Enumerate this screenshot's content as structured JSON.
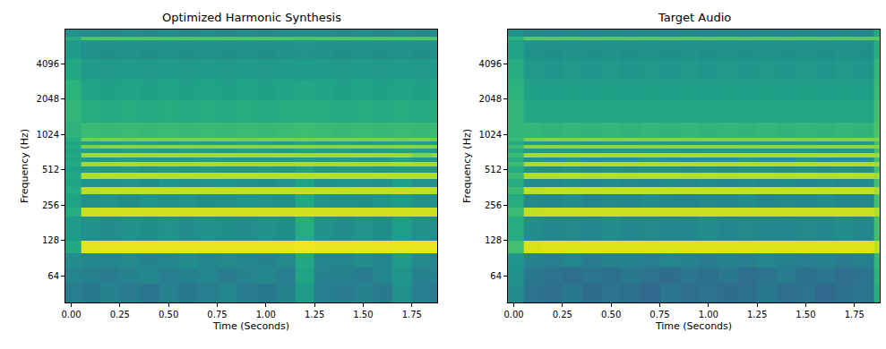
{
  "chart_data": [
    {
      "type": "heatmap",
      "title": "Optimized Harmonic Synthesis",
      "x_label": "Time (Seconds)",
      "y_label": "Frequency (Hz)",
      "color": "Viridis",
      "log": "y",
      "grid": false,
      "xlim": [
        -0.03,
        1.88
      ],
      "ylim": [
        38,
        8000
      ],
      "xticks": [
        {
          "value": 0,
          "label": "0.00"
        },
        {
          "value": 0.25,
          "label": "0.25"
        },
        {
          "value": 0.5,
          "label": "0.50"
        },
        {
          "value": 0.75,
          "label": "0.75"
        },
        {
          "value": 1,
          "label": "1.00"
        },
        {
          "value": 1.25,
          "label": "1.25"
        },
        {
          "value": 1.5,
          "label": "1.50"
        },
        {
          "value": 1.75,
          "label": "1.75"
        }
      ],
      "yticks": [
        64,
        128,
        256,
        512,
        1024,
        2048,
        4096
      ],
      "zlim": [
        0,
        100
      ],
      "x": [
        -0.05,
        0.05,
        0.15,
        0.25,
        0.35,
        0.45,
        0.55,
        0.65,
        0.75,
        0.85,
        0.95,
        1.05,
        1.15,
        1.25,
        1.35,
        1.45,
        1.55,
        1.65,
        1.75,
        1.85,
        1.95
      ],
      "y": [
        38,
        55,
        75,
        100,
        128,
        205,
        245,
        320,
        365,
        430,
        485,
        545,
        600,
        650,
        710,
        780,
        830,
        900,
        950,
        1300,
        2000,
        3000,
        4500,
        6000,
        6500,
        6900,
        8000
      ],
      "z": [
        [
          42,
          40,
          44,
          41,
          39,
          43,
          40,
          42,
          45,
          41,
          40,
          43,
          55,
          42,
          41,
          44,
          40,
          50,
          42,
          41
        ],
        [
          45,
          43,
          41,
          44,
          46,
          42,
          43,
          45,
          41,
          44,
          46,
          42,
          58,
          44,
          43,
          41,
          45,
          52,
          43,
          44
        ],
        [
          48,
          46,
          45,
          47,
          44,
          46,
          48,
          45,
          47,
          46,
          44,
          47,
          60,
          46,
          45,
          48,
          46,
          54,
          47,
          45
        ],
        [
          60,
          96,
          97,
          97,
          97,
          97,
          97,
          97,
          97,
          97,
          97,
          97,
          98,
          97,
          97,
          97,
          97,
          97,
          97,
          97
        ],
        [
          55,
          50,
          48,
          50,
          49,
          51,
          48,
          50,
          49,
          48,
          50,
          49,
          62,
          50,
          48,
          51,
          49,
          56,
          50,
          49
        ],
        [
          62,
          92,
          93,
          93,
          93,
          93,
          93,
          93,
          93,
          93,
          93,
          93,
          93,
          93,
          93,
          93,
          93,
          93,
          93,
          92
        ],
        [
          58,
          50,
          51,
          49,
          52,
          50,
          51,
          49,
          50,
          52,
          51,
          50,
          60,
          51,
          50,
          49,
          52,
          55,
          50,
          51
        ],
        [
          62,
          90,
          91,
          91,
          91,
          91,
          91,
          91,
          91,
          91,
          91,
          91,
          91,
          91,
          91,
          91,
          91,
          91,
          91,
          90
        ],
        [
          58,
          52,
          50,
          51,
          49,
          52,
          50,
          51,
          52,
          50,
          49,
          51,
          58,
          50,
          52,
          51,
          50,
          56,
          51,
          50
        ],
        [
          60,
          88,
          89,
          89,
          89,
          89,
          89,
          89,
          89,
          89,
          89,
          89,
          89,
          89,
          89,
          89,
          89,
          89,
          89,
          88
        ],
        [
          57,
          54,
          52,
          53,
          51,
          54,
          52,
          53,
          52,
          51,
          53,
          52,
          57,
          52,
          53,
          54,
          52,
          55,
          53,
          52
        ],
        [
          60,
          86,
          87,
          87,
          87,
          87,
          87,
          87,
          87,
          87,
          87,
          87,
          87,
          87,
          87,
          87,
          87,
          87,
          87,
          86
        ],
        [
          58,
          55,
          54,
          56,
          53,
          55,
          54,
          56,
          55,
          54,
          53,
          55,
          57,
          54,
          56,
          55,
          54,
          58,
          55,
          54
        ],
        [
          60,
          85,
          86,
          86,
          86,
          86,
          86,
          86,
          86,
          86,
          86,
          86,
          86,
          86,
          86,
          86,
          86,
          86,
          80,
          84
        ],
        [
          58,
          56,
          55,
          57,
          56,
          55,
          57,
          56,
          55,
          57,
          56,
          55,
          58,
          56,
          57,
          55,
          56,
          58,
          56,
          55
        ],
        [
          62,
          80,
          82,
          82,
          82,
          82,
          82,
          82,
          82,
          82,
          82,
          82,
          82,
          82,
          82,
          82,
          82,
          82,
          82,
          80
        ],
        [
          58,
          57,
          56,
          58,
          57,
          56,
          58,
          57,
          56,
          58,
          57,
          56,
          59,
          57,
          58,
          56,
          57,
          58,
          57,
          56
        ],
        [
          62,
          78,
          79,
          79,
          79,
          79,
          79,
          79,
          79,
          79,
          79,
          79,
          79,
          79,
          79,
          79,
          79,
          79,
          79,
          78
        ],
        [
          65,
          68,
          67,
          68,
          67,
          68,
          67,
          68,
          67,
          68,
          67,
          68,
          69,
          68,
          67,
          68,
          67,
          68,
          67,
          68
        ],
        [
          66,
          62,
          61,
          62,
          61,
          62,
          61,
          62,
          61,
          62,
          61,
          62,
          63,
          62,
          61,
          62,
          61,
          62,
          61,
          62
        ],
        [
          64,
          58,
          57,
          58,
          57,
          58,
          57,
          58,
          57,
          58,
          57,
          58,
          59,
          58,
          57,
          58,
          57,
          58,
          57,
          58
        ],
        [
          60,
          54,
          53,
          54,
          53,
          54,
          53,
          54,
          53,
          54,
          53,
          54,
          55,
          54,
          53,
          54,
          53,
          54,
          53,
          54
        ],
        [
          55,
          50,
          49,
          50,
          49,
          50,
          49,
          50,
          49,
          50,
          49,
          50,
          51,
          50,
          49,
          50,
          49,
          50,
          49,
          50
        ],
        [
          55,
          52,
          51,
          52,
          51,
          52,
          51,
          52,
          51,
          52,
          51,
          52,
          53,
          52,
          51,
          52,
          51,
          52,
          51,
          52
        ],
        [
          62,
          72,
          72,
          72,
          72,
          72,
          72,
          72,
          72,
          72,
          72,
          72,
          72,
          72,
          72,
          72,
          72,
          72,
          72,
          72
        ],
        [
          50,
          48,
          47,
          48,
          47,
          48,
          47,
          48,
          47,
          48,
          47,
          48,
          49,
          48,
          47,
          48,
          47,
          48,
          47,
          48
        ]
      ]
    },
    {
      "type": "heatmap",
      "title": "Target Audio",
      "x_label": "Time (Seconds)",
      "y_label": "Frequency (Hz)",
      "color": "Viridis",
      "log": "y",
      "grid": false,
      "xlim": [
        -0.03,
        1.88
      ],
      "ylim": [
        38,
        8000
      ],
      "xticks": [
        {
          "value": 0,
          "label": "0.00"
        },
        {
          "value": 0.25,
          "label": "0.25"
        },
        {
          "value": 0.5,
          "label": "0.50"
        },
        {
          "value": 0.75,
          "label": "0.75"
        },
        {
          "value": 1,
          "label": "1.00"
        },
        {
          "value": 1.25,
          "label": "1.25"
        },
        {
          "value": 1.5,
          "label": "1.50"
        },
        {
          "value": 1.75,
          "label": "1.75"
        }
      ],
      "yticks": [
        64,
        128,
        256,
        512,
        1024,
        2048,
        4096
      ],
      "zlim": [
        0,
        100
      ],
      "x": [
        -0.05,
        0.05,
        0.15,
        0.25,
        0.35,
        0.45,
        0.55,
        0.65,
        0.75,
        0.85,
        0.95,
        1.05,
        1.15,
        1.25,
        1.35,
        1.45,
        1.55,
        1.65,
        1.75,
        1.85,
        1.95
      ],
      "y": [
        38,
        55,
        75,
        100,
        128,
        205,
        245,
        320,
        365,
        430,
        485,
        545,
        600,
        650,
        710,
        780,
        830,
        900,
        950,
        1300,
        2000,
        3000,
        4500,
        6000,
        6500,
        6900,
        8000
      ],
      "z": [
        [
          48,
          38,
          36,
          40,
          35,
          38,
          37,
          34,
          39,
          36,
          38,
          35,
          37,
          40,
          36,
          38,
          34,
          37,
          39,
          62
        ],
        [
          50,
          40,
          38,
          36,
          39,
          37,
          40,
          38,
          35,
          39,
          37,
          40,
          36,
          38,
          41,
          37,
          39,
          36,
          38,
          64
        ],
        [
          52,
          44,
          42,
          45,
          41,
          43,
          44,
          42,
          45,
          43,
          41,
          44,
          42,
          45,
          43,
          42,
          44,
          41,
          43,
          66
        ],
        [
          70,
          94,
          95,
          95,
          95,
          95,
          95,
          95,
          95,
          95,
          95,
          95,
          95,
          95,
          95,
          95,
          95,
          95,
          95,
          90
        ],
        [
          62,
          48,
          46,
          47,
          45,
          48,
          46,
          47,
          45,
          46,
          48,
          45,
          47,
          46,
          45,
          47,
          46,
          48,
          46,
          70
        ],
        [
          68,
          91,
          92,
          92,
          92,
          92,
          92,
          92,
          92,
          92,
          92,
          92,
          92,
          92,
          92,
          92,
          92,
          92,
          92,
          88
        ],
        [
          62,
          47,
          46,
          48,
          45,
          47,
          46,
          48,
          46,
          45,
          47,
          46,
          48,
          45,
          47,
          46,
          48,
          46,
          47,
          70
        ],
        [
          68,
          90,
          91,
          91,
          91,
          91,
          91,
          91,
          91,
          91,
          91,
          91,
          91,
          91,
          91,
          91,
          91,
          91,
          91,
          88
        ],
        [
          62,
          48,
          47,
          49,
          46,
          48,
          47,
          46,
          49,
          47,
          48,
          46,
          48,
          47,
          49,
          46,
          48,
          47,
          48,
          70
        ],
        [
          68,
          88,
          89,
          89,
          89,
          89,
          89,
          89,
          89,
          89,
          89,
          89,
          89,
          89,
          89,
          89,
          89,
          89,
          89,
          86
        ],
        [
          62,
          50,
          49,
          51,
          48,
          50,
          49,
          51,
          50,
          48,
          50,
          49,
          51,
          50,
          49,
          51,
          48,
          50,
          49,
          70
        ],
        [
          68,
          87,
          88,
          88,
          88,
          88,
          88,
          88,
          88,
          88,
          88,
          88,
          88,
          88,
          88,
          88,
          88,
          88,
          88,
          86
        ],
        [
          62,
          52,
          51,
          53,
          50,
          52,
          51,
          53,
          52,
          50,
          52,
          51,
          53,
          52,
          51,
          53,
          50,
          52,
          51,
          70
        ],
        [
          68,
          86,
          87,
          87,
          87,
          87,
          87,
          87,
          87,
          87,
          87,
          87,
          87,
          87,
          87,
          87,
          87,
          87,
          87,
          85
        ],
        [
          62,
          54,
          53,
          55,
          52,
          54,
          53,
          55,
          54,
          52,
          54,
          53,
          55,
          54,
          53,
          55,
          52,
          54,
          53,
          70
        ],
        [
          68,
          82,
          83,
          83,
          83,
          83,
          83,
          83,
          83,
          83,
          83,
          83,
          83,
          83,
          83,
          83,
          83,
          83,
          83,
          82
        ],
        [
          62,
          55,
          54,
          56,
          53,
          55,
          54,
          56,
          55,
          53,
          55,
          54,
          56,
          55,
          54,
          56,
          53,
          55,
          54,
          70
        ],
        [
          68,
          80,
          81,
          81,
          81,
          81,
          81,
          81,
          81,
          81,
          81,
          81,
          81,
          81,
          81,
          81,
          81,
          81,
          81,
          80
        ],
        [
          66,
          66,
          65,
          66,
          65,
          66,
          65,
          66,
          65,
          66,
          65,
          66,
          65,
          66,
          65,
          66,
          65,
          66,
          65,
          72
        ],
        [
          66,
          60,
          59,
          60,
          59,
          60,
          59,
          60,
          59,
          60,
          59,
          60,
          59,
          60,
          59,
          60,
          59,
          60,
          59,
          70
        ],
        [
          64,
          57,
          56,
          57,
          56,
          57,
          56,
          57,
          56,
          57,
          56,
          57,
          56,
          57,
          56,
          57,
          56,
          57,
          56,
          68
        ],
        [
          62,
          53,
          52,
          53,
          52,
          53,
          52,
          53,
          52,
          53,
          52,
          53,
          52,
          53,
          52,
          53,
          52,
          53,
          52,
          66
        ],
        [
          58,
          50,
          49,
          50,
          49,
          50,
          49,
          50,
          49,
          50,
          49,
          50,
          49,
          50,
          49,
          50,
          49,
          50,
          49,
          62
        ],
        [
          58,
          52,
          51,
          52,
          51,
          52,
          51,
          52,
          51,
          52,
          51,
          52,
          51,
          52,
          51,
          52,
          51,
          52,
          51,
          62
        ],
        [
          64,
          74,
          74,
          74,
          74,
          74,
          74,
          74,
          74,
          74,
          74,
          74,
          74,
          74,
          74,
          74,
          74,
          74,
          74,
          74
        ],
        [
          52,
          47,
          46,
          47,
          46,
          47,
          46,
          47,
          46,
          47,
          46,
          47,
          46,
          47,
          46,
          47,
          46,
          47,
          46,
          60
        ]
      ]
    }
  ]
}
